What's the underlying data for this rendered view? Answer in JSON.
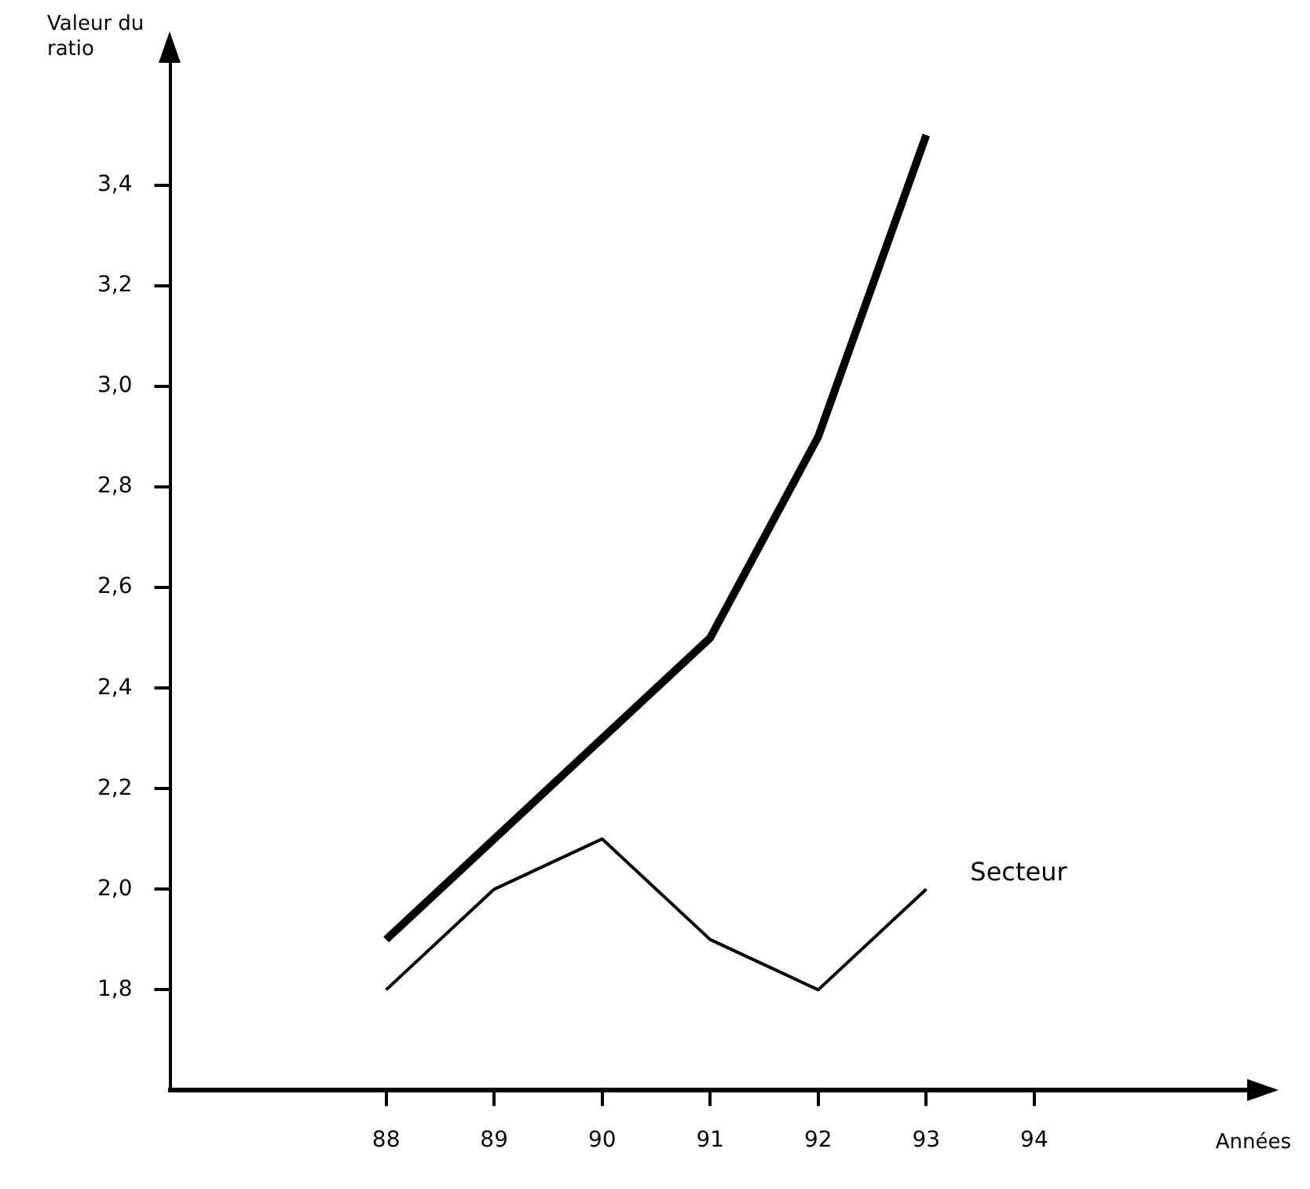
{
  "chart_data": {
    "type": "line",
    "xlabel": "Années",
    "ylabel": "Valeur du ratio",
    "x": [
      88,
      89,
      90,
      91,
      92,
      93
    ],
    "series": [
      {
        "color": "#000000",
        "values": [
          1.9,
          2.1,
          2.3,
          2.5,
          2.9,
          3.5
        ]
      },
      {
        "name": "Secteur",
        "color": "#000000",
        "values": [
          1.8,
          2.0,
          2.1,
          1.9,
          1.8,
          2.0
        ]
      }
    ],
    "xlim": [
      86,
      96
    ],
    "xticks": [
      88,
      89,
      90,
      91,
      92,
      93,
      94
    ],
    "ylim": [
      1.6,
      3.65
    ],
    "yticks": [
      {
        "value": 1.8,
        "label": "1,8"
      },
      {
        "value": 2.0,
        "label": "2,0"
      },
      {
        "value": 2.2,
        "label": "2,2"
      },
      {
        "value": 2.4,
        "label": "2,4"
      },
      {
        "value": 2.6,
        "label": "2,6"
      },
      {
        "value": 2.8,
        "label": "2,8"
      },
      {
        "value": 3.0,
        "label": "3,0"
      },
      {
        "value": 3.2,
        "label": "3,2"
      },
      {
        "value": 3.4,
        "label": "3,4"
      }
    ],
    "grid": false,
    "legend": false,
    "marker": "none",
    "line_style": "solid"
  }
}
